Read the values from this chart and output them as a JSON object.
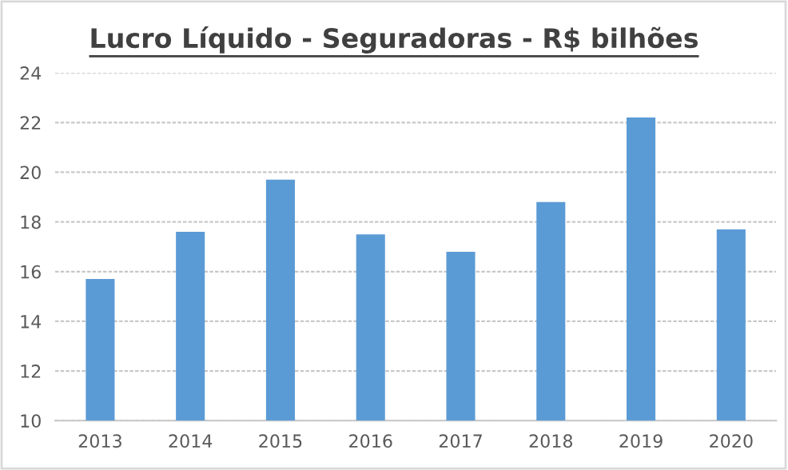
{
  "chart_data": {
    "type": "bar",
    "title": "Lucro Líquido - Seguradoras - R$ bilhões",
    "categories": [
      "2013",
      "2014",
      "2015",
      "2016",
      "2017",
      "2018",
      "2019",
      "2020"
    ],
    "values": [
      15.7,
      17.6,
      19.7,
      17.5,
      16.8,
      18.8,
      22.2,
      17.7
    ],
    "color": "#5b9bd5",
    "ylim": [
      10,
      24
    ],
    "yticks": [
      10,
      12,
      14,
      16,
      18,
      20,
      22,
      24
    ],
    "grid": "y"
  }
}
